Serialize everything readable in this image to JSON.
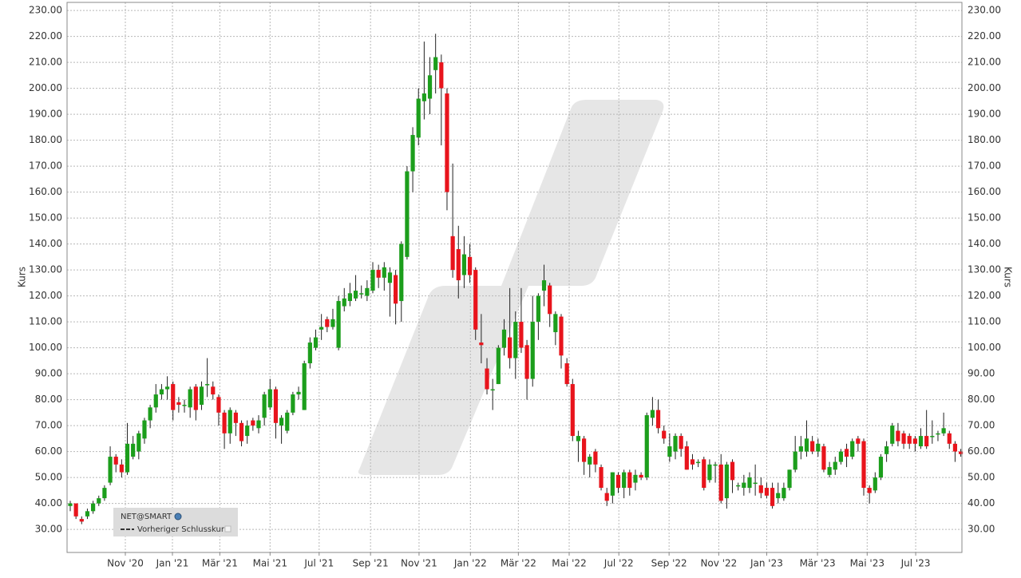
{
  "chart_data": {
    "type": "candlestick",
    "y_axis_label": "Kurs",
    "y2_axis_label": "Kurs",
    "grid": true,
    "up_color": "#1c9e1c",
    "down_color": "#e8141c",
    "ylim": [
      21.1,
      233.1
    ],
    "yticks": [
      {
        "value": 30,
        "label": "30.00"
      },
      {
        "value": 40,
        "label": "40.00"
      },
      {
        "value": 50,
        "label": "50.00"
      },
      {
        "value": 60,
        "label": "60.00"
      },
      {
        "value": 70,
        "label": "70.00"
      },
      {
        "value": 80,
        "label": "80.00"
      },
      {
        "value": 90,
        "label": "90.00"
      },
      {
        "value": 100,
        "label": "100.00"
      },
      {
        "value": 110,
        "label": "110.00"
      },
      {
        "value": 120,
        "label": "120.00"
      },
      {
        "value": 130,
        "label": "130.00"
      },
      {
        "value": 140,
        "label": "140.00"
      },
      {
        "value": 150,
        "label": "150.00"
      },
      {
        "value": 160,
        "label": "160.00"
      },
      {
        "value": 170,
        "label": "170.00"
      },
      {
        "value": 180,
        "label": "180.00"
      },
      {
        "value": 190,
        "label": "190.00"
      },
      {
        "value": 200,
        "label": "200.00"
      },
      {
        "value": 210,
        "label": "210.00"
      },
      {
        "value": 220,
        "label": "220.00"
      },
      {
        "value": 230,
        "label": "230.00"
      }
    ],
    "xlim": [
      -0.56,
      156.2
    ],
    "xticks": [
      {
        "value": 9.65,
        "label": "Nov '20"
      },
      {
        "value": 17.9,
        "label": "Jan '21"
      },
      {
        "value": 26.2,
        "label": "Mär '21"
      },
      {
        "value": 35.0,
        "label": "Mai '21"
      },
      {
        "value": 43.6,
        "label": "Jul '21"
      },
      {
        "value": 52.6,
        "label": "Sep '21"
      },
      {
        "value": 61.1,
        "label": "Nov '21"
      },
      {
        "value": 70.1,
        "label": "Jan '22"
      },
      {
        "value": 78.5,
        "label": "Mär '22"
      },
      {
        "value": 87.4,
        "label": "Mai '22"
      },
      {
        "value": 96.1,
        "label": "Jul '22"
      },
      {
        "value": 104.9,
        "label": "Sep '22"
      },
      {
        "value": 113.6,
        "label": "Nov '22"
      },
      {
        "value": 122.0,
        "label": "Jan '23"
      },
      {
        "value": 130.9,
        "label": "Mär '23"
      },
      {
        "value": 139.6,
        "label": "Mai '23"
      },
      {
        "value": 148.1,
        "label": "Jul '23"
      }
    ],
    "series": [
      {
        "name": "NET@SMART",
        "open": [
          39,
          40,
          34,
          35,
          37,
          40,
          42,
          48,
          58,
          55,
          52,
          58,
          60,
          65,
          72,
          77,
          82,
          84,
          86,
          79,
          78,
          77,
          85,
          78,
          86,
          85,
          81,
          75,
          67,
          75,
          71,
          66,
          72,
          69,
          73,
          77,
          84,
          70,
          68,
          75,
          82,
          76,
          94,
          100,
          107,
          111,
          108,
          100,
          116,
          118,
          119,
          121,
          120,
          122,
          130,
          127,
          125,
          128,
          118,
          135,
          168,
          181,
          195,
          196,
          207,
          210,
          198,
          143,
          138,
          128,
          135,
          130,
          102,
          92,
          84,
          86,
          100,
          104,
          96,
          110,
          101,
          88,
          110,
          122,
          124,
          106,
          112,
          94,
          86,
          64,
          65,
          55,
          60,
          54,
          44,
          43,
          51,
          46,
          52,
          48,
          51,
          50,
          73,
          76,
          68,
          58,
          60,
          66,
          62,
          57,
          56,
          57,
          49,
          55,
          55,
          42,
          56,
          47,
          46,
          46,
          48,
          47,
          46,
          46,
          42,
          42,
          46,
          53,
          60,
          60,
          64,
          60,
          62,
          51,
          53,
          56,
          61,
          58,
          65,
          64,
          46,
          45,
          50,
          59,
          63,
          68,
          67,
          66,
          65,
          62,
          66,
          66,
          67,
          67,
          67,
          63,
          60
        ],
        "high": [
          41,
          40,
          35,
          38,
          41,
          43,
          47,
          62,
          59,
          57,
          71,
          66,
          68,
          73,
          78,
          86,
          86,
          89,
          87,
          81,
          80,
          85,
          86,
          87,
          96,
          87,
          82,
          76,
          77,
          76,
          72,
          72,
          73,
          74,
          83,
          88,
          85,
          74,
          76,
          83,
          85,
          95,
          104,
          107,
          113,
          112,
          115,
          120,
          123,
          125,
          128,
          124,
          126,
          133,
          132,
          133,
          131,
          130,
          141,
          170,
          185,
          200,
          218,
          212,
          221,
          213,
          200,
          171,
          147,
          143,
          140,
          131,
          113,
          96,
          88,
          101,
          111,
          123,
          114,
          123,
          103,
          120,
          121,
          132,
          125,
          114,
          113,
          96,
          88,
          68,
          66,
          59,
          61,
          55,
          46,
          52,
          52,
          53,
          53,
          53,
          52,
          75,
          81,
          80,
          70,
          67,
          67,
          67,
          64,
          59,
          57,
          58,
          57,
          56,
          59,
          56,
          57,
          48,
          51,
          52,
          55,
          50,
          48,
          48,
          48,
          48,
          53,
          66,
          66,
          72,
          66,
          65,
          63,
          56,
          58,
          61,
          63,
          65,
          66,
          65,
          47,
          52,
          59,
          64,
          71,
          71,
          68,
          67,
          66,
          69,
          76,
          72,
          68,
          75,
          68,
          64,
          61
        ],
        "low": [
          37,
          34,
          32,
          34,
          36,
          39,
          41,
          47,
          52,
          50,
          51,
          57,
          57,
          63,
          69,
          75,
          80,
          80,
          72,
          75,
          75,
          73,
          72,
          76,
          81,
          80,
          70,
          61,
          63,
          66,
          62,
          63,
          68,
          67,
          70,
          76,
          65,
          63,
          67,
          74,
          80,
          76,
          92,
          99,
          103,
          106,
          107,
          99,
          114,
          116,
          118,
          119,
          118,
          121,
          123,
          122,
          112,
          109,
          110,
          134,
          160,
          178,
          188,
          190,
          198,
          178,
          153,
          127,
          119,
          123,
          125,
          103,
          94,
          82,
          76,
          86,
          97,
          92,
          88,
          98,
          80,
          85,
          103,
          116,
          108,
          101,
          92,
          85,
          64,
          56,
          51,
          50,
          52,
          45,
          39,
          40,
          44,
          42,
          43,
          45,
          49,
          49,
          70,
          67,
          63,
          56,
          57,
          58,
          53,
          53,
          54,
          45,
          48,
          48,
          40,
          38,
          44,
          45,
          43,
          44,
          43,
          42,
          42,
          38,
          40,
          41,
          45,
          52,
          57,
          58,
          59,
          58,
          52,
          50,
          51,
          55,
          54,
          57,
          60,
          43,
          40,
          44,
          49,
          56,
          62,
          62,
          61,
          61,
          60,
          61,
          61,
          63,
          64,
          66,
          61,
          56,
          58
        ],
        "close": [
          40,
          35,
          33,
          37,
          40,
          42,
          46,
          58,
          55,
          52,
          63,
          63,
          67,
          72,
          77,
          82,
          84,
          85,
          76,
          78,
          78,
          84,
          76,
          85,
          86,
          82,
          75,
          67,
          76,
          71,
          64,
          70,
          70,
          72,
          82,
          84,
          71,
          73,
          75,
          82,
          83,
          94,
          102,
          104,
          108,
          108,
          111,
          118,
          119,
          121,
          122,
          121,
          123,
          130,
          127,
          131,
          129,
          117,
          140,
          168,
          182,
          196,
          198,
          205,
          212,
          200,
          160,
          130,
          126,
          136,
          128,
          107,
          101,
          84,
          84,
          100,
          107,
          96,
          110,
          100,
          88,
          110,
          120,
          126,
          113,
          113,
          97,
          86,
          66,
          66,
          56,
          58,
          55,
          46,
          41,
          52,
          46,
          52,
          46,
          51,
          50,
          74,
          76,
          69,
          65,
          62,
          66,
          61,
          53,
          55,
          56,
          46,
          55,
          55,
          41,
          55,
          49,
          47,
          48,
          50,
          48,
          44,
          43,
          39,
          44,
          46,
          53,
          60,
          62,
          65,
          60,
          63,
          53,
          54,
          56,
          60,
          58,
          64,
          63,
          46,
          44,
          50,
          58,
          62,
          70,
          64,
          63,
          63,
          63,
          66,
          62,
          66,
          67,
          69,
          63,
          60,
          59
        ]
      },
      {
        "name": "Vorheriger Schlusskurs",
        "color": "#333333",
        "style": "dashed"
      }
    ]
  }
}
